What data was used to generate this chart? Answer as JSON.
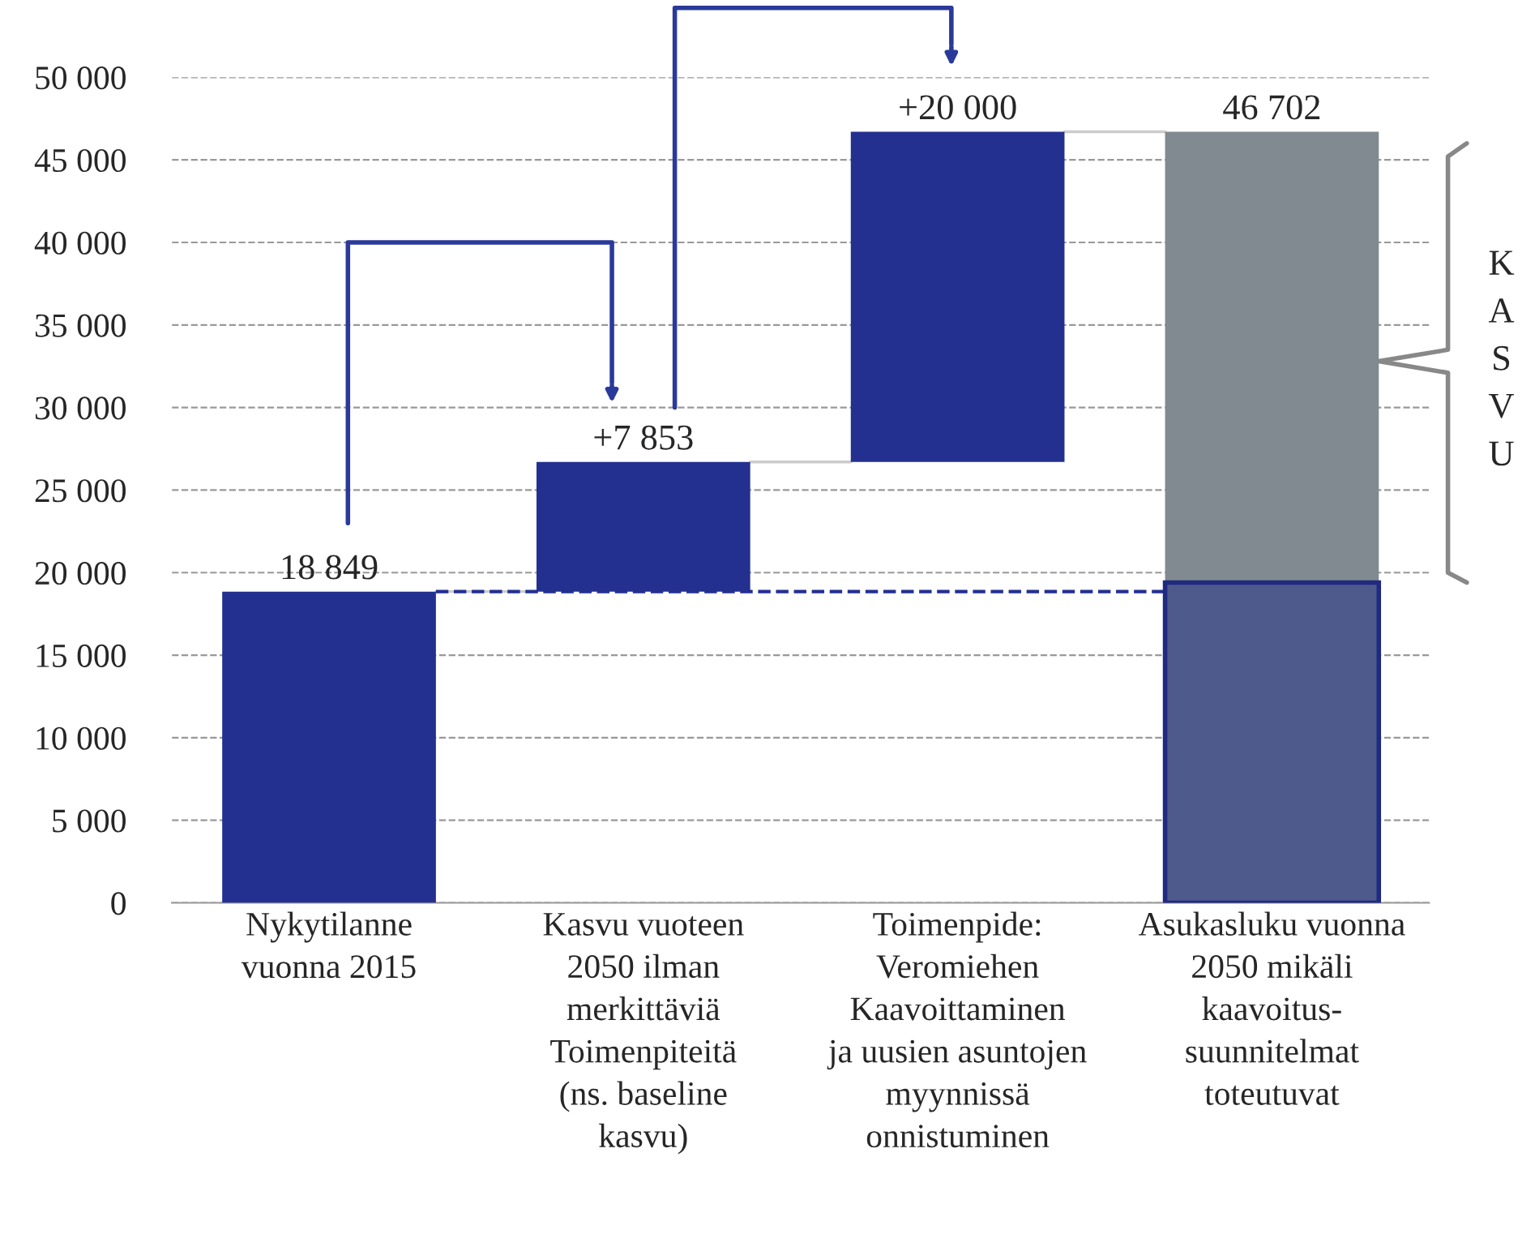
{
  "chart_data": {
    "type": "bar",
    "categories": [
      "Nykytilanne\nvuonna 2015",
      "Kasvu vuoteen\n2050 ilman\nmerkittäviä\nToimenpiteitä\n(ns. baseline\nkasvu)",
      "Toimenpide:\nVeromiehen\nKaavoittaminen\nja uusien asuntojen\nmyynnissä\nonnistuminen",
      "Asukasluku vuonna\n2050 mikäli\nkaavoitus-\nsuunnitelmat\ntoteutuvat"
    ],
    "series": [
      {
        "values": [
          18849,
          7853,
          20000,
          27302
        ],
        "base": [
          0,
          18849,
          26702,
          19400
        ],
        "colors": [
          "#233090",
          "#233090",
          "#233090",
          "#808a90"
        ],
        "value_labels": [
          "18 849",
          "+7 853",
          "+20 000",
          "46 702"
        ]
      },
      {
        "values": [
          null,
          null,
          null,
          19400
        ],
        "base": [
          null,
          null,
          null,
          0
        ],
        "colors": [
          null,
          null,
          null,
          "#4f5a8c"
        ]
      }
    ],
    "ylim": [
      0,
      50000
    ],
    "yticks": [
      {
        "value": 0,
        "label": "0"
      },
      {
        "value": 5000,
        "label": "5 000"
      },
      {
        "value": 10000,
        "label": "10 000"
      },
      {
        "value": 15000,
        "label": "15 000"
      },
      {
        "value": 20000,
        "label": "20 000"
      },
      {
        "value": 25000,
        "label": "25 000"
      },
      {
        "value": 30000,
        "label": "30 000"
      },
      {
        "value": 35000,
        "label": "35 000"
      },
      {
        "value": 40000,
        "label": "40 000"
      },
      {
        "value": 45000,
        "label": "45 000"
      },
      {
        "value": 50000,
        "label": "50 000"
      }
    ],
    "grid": "y",
    "ref_lines": [
      {
        "axis": "y",
        "value": 18849,
        "color": "#233090",
        "line_style": "dashed"
      }
    ],
    "annotations": [
      "KASVU"
    ]
  }
}
